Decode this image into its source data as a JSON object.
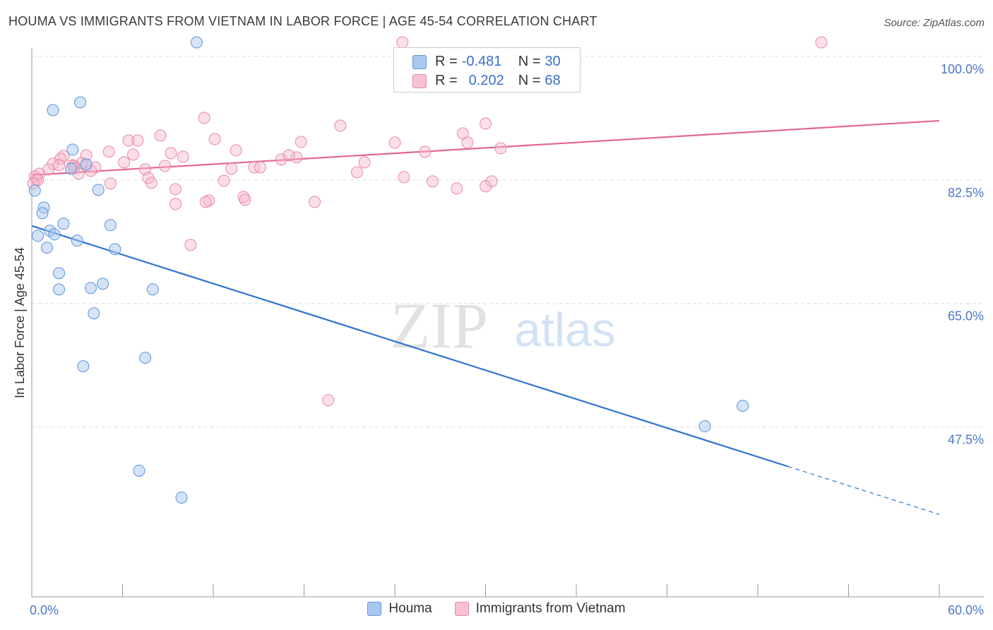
{
  "title": "HOUMA VS IMMIGRANTS FROM VIETNAM IN LABOR FORCE | AGE 45-54 CORRELATION CHART",
  "source": "Source: ZipAtlas.com",
  "watermark": {
    "zip": "ZIP",
    "atlas": "atlas"
  },
  "colors": {
    "houma_fill": "#aac8ee",
    "houma_stroke": "#5b95d8",
    "houma_line": "#2f74d0",
    "viet_fill": "#f6b8cb",
    "viet_stroke": "#e888a6",
    "viet_line": "#e2678f",
    "tick_label": "#4a78c8",
    "grid": "#dddddd"
  },
  "legend_top": [
    {
      "r_label": "R = ",
      "r_value": "-0.481",
      "n_label": "N = ",
      "n_value": "30"
    },
    {
      "r_label": "R = ",
      "r_value": "0.202",
      "n_label": "N = ",
      "n_value": "68"
    }
  ],
  "chart_data": {
    "type": "scatter",
    "xlabel": "",
    "ylabel": "In Labor Force | Age 45-54",
    "xlim": [
      0,
      60
    ],
    "ylim": [
      30,
      102
    ],
    "x_tick_labels": [
      "0.0%",
      "60.0%"
    ],
    "y_ticks": [
      47.5,
      65.0,
      82.5,
      100.0
    ],
    "y_tick_labels": [
      "47.5%",
      "65.0%",
      "82.5%",
      "100.0%"
    ],
    "grid": true,
    "legend_position": "top-center",
    "series": [
      {
        "name": "Houma",
        "points": [
          [
            10.9,
            102
          ],
          [
            3.2,
            93.5
          ],
          [
            1.4,
            92.4
          ],
          [
            2.7,
            86.8
          ],
          [
            2.6,
            84.1
          ],
          [
            3.6,
            84.7
          ],
          [
            4.4,
            81.1
          ],
          [
            0.2,
            81.0
          ],
          [
            0.8,
            78.6
          ],
          [
            0.7,
            77.8
          ],
          [
            2.1,
            76.3
          ],
          [
            5.2,
            76.1
          ],
          [
            1.2,
            75.3
          ],
          [
            1.5,
            74.8
          ],
          [
            0.4,
            74.6
          ],
          [
            3.0,
            73.9
          ],
          [
            1.0,
            72.9
          ],
          [
            5.5,
            72.7
          ],
          [
            1.8,
            69.3
          ],
          [
            4.7,
            67.8
          ],
          [
            3.9,
            67.2
          ],
          [
            1.8,
            67.0
          ],
          [
            8.0,
            67.0
          ],
          [
            4.1,
            63.6
          ],
          [
            7.5,
            57.3
          ],
          [
            3.4,
            56.1
          ],
          [
            44.5,
            47.6
          ],
          [
            47.0,
            50.5
          ],
          [
            7.1,
            41.3
          ],
          [
            9.9,
            37.5
          ]
        ],
        "trend": {
          "x0": 0,
          "y0": 76.0,
          "x1": 50.0,
          "y1": 41.9,
          "dash_to_x": 60.0,
          "dash_to_y": 35.1
        }
      },
      {
        "name": "Immigrants from Vietnam",
        "points": [
          [
            24.5,
            102
          ],
          [
            52.2,
            102
          ],
          [
            11.4,
            91.3
          ],
          [
            20.4,
            90.2
          ],
          [
            28.5,
            89.1
          ],
          [
            8.5,
            88.8
          ],
          [
            12.1,
            88.3
          ],
          [
            6.4,
            88.1
          ],
          [
            7.0,
            88.1
          ],
          [
            17.8,
            87.9
          ],
          [
            24.0,
            87.8
          ],
          [
            28.8,
            87.8
          ],
          [
            13.5,
            86.7
          ],
          [
            5.1,
            86.5
          ],
          [
            9.2,
            86.3
          ],
          [
            6.7,
            86.1
          ],
          [
            3.6,
            86.0
          ],
          [
            2.1,
            85.9
          ],
          [
            10.0,
            85.8
          ],
          [
            17.5,
            85.7
          ],
          [
            16.5,
            85.4
          ],
          [
            1.9,
            85.5
          ],
          [
            6.1,
            85.0
          ],
          [
            1.4,
            84.8
          ],
          [
            3.3,
            84.9
          ],
          [
            3.6,
            84.7
          ],
          [
            2.7,
            84.6
          ],
          [
            1.8,
            84.6
          ],
          [
            2.8,
            84.5
          ],
          [
            8.8,
            84.5
          ],
          [
            13.2,
            84.1
          ],
          [
            14.7,
            84.3
          ],
          [
            15.1,
            84.3
          ],
          [
            4.2,
            84.3
          ],
          [
            2.8,
            84.2
          ],
          [
            1.1,
            84.0
          ],
          [
            7.5,
            84.0
          ],
          [
            3.9,
            83.8
          ],
          [
            21.5,
            83.6
          ],
          [
            0.5,
            83.4
          ],
          [
            3.1,
            83.4
          ],
          [
            0.2,
            83.0
          ],
          [
            24.6,
            82.9
          ],
          [
            7.7,
            82.8
          ],
          [
            0.3,
            82.6
          ],
          [
            12.7,
            82.4
          ],
          [
            30.4,
            82.3
          ],
          [
            26.5,
            82.3
          ],
          [
            7.9,
            82.1
          ],
          [
            5.2,
            82.0
          ],
          [
            30.0,
            81.6
          ],
          [
            28.1,
            81.3
          ],
          [
            9.5,
            81.2
          ],
          [
            14.0,
            80.1
          ],
          [
            14.1,
            79.7
          ],
          [
            11.7,
            79.6
          ],
          [
            18.7,
            79.4
          ],
          [
            11.5,
            79.4
          ],
          [
            9.5,
            79.1
          ],
          [
            0.4,
            82.5
          ],
          [
            0.1,
            82.0
          ],
          [
            10.5,
            73.3
          ],
          [
            19.6,
            51.3
          ],
          [
            30.0,
            90.5
          ],
          [
            31.0,
            87.0
          ],
          [
            26.0,
            86.5
          ],
          [
            17.0,
            86.0
          ],
          [
            22.0,
            85.0
          ]
        ],
        "trend": {
          "x0": 0,
          "y0": 83.2,
          "x1": 60.0,
          "y1": 90.9
        }
      }
    ]
  },
  "legend_bottom": [
    "Houma",
    "Immigrants from Vietnam"
  ]
}
